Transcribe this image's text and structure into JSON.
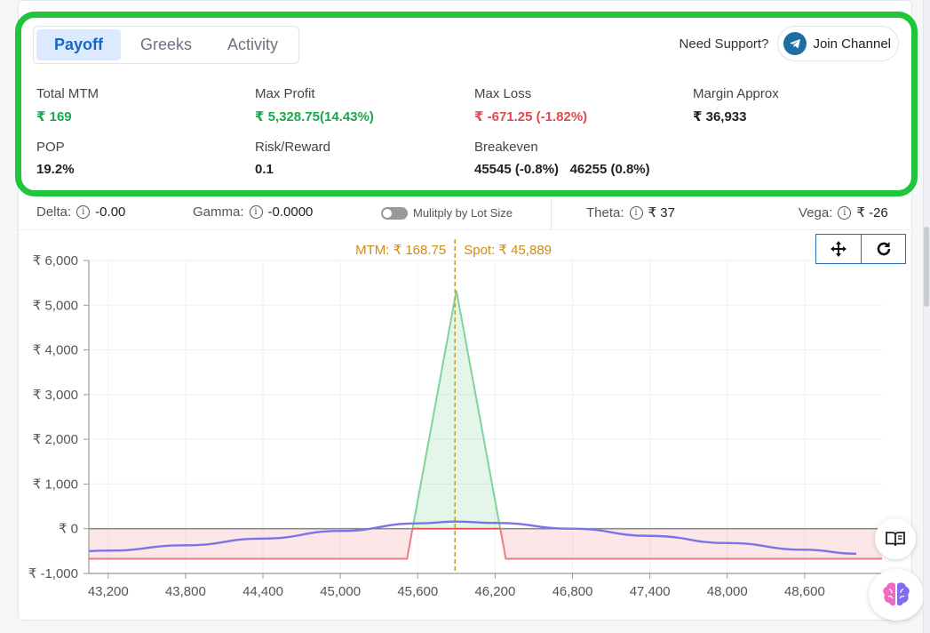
{
  "tabs": [
    {
      "label": "Payoff",
      "active": true
    },
    {
      "label": "Greeks",
      "active": false
    },
    {
      "label": "Activity",
      "active": false
    }
  ],
  "support": {
    "text": "Need Support?",
    "button_label": "Join Channel",
    "icon": "telegram-icon"
  },
  "stats": {
    "total_mtm": {
      "label": "Total MTM",
      "value": "₹ 169"
    },
    "max_profit": {
      "label": "Max Profit",
      "value": "₹ 5,328.75(14.43%)"
    },
    "max_loss": {
      "label": "Max Loss",
      "value": "₹ -671.25 (-1.82%)"
    },
    "margin": {
      "label": "Margin Approx",
      "value": "₹ 36,933"
    },
    "pop": {
      "label": "POP",
      "value": "19.2%"
    },
    "risk_reward": {
      "label": "Risk/Reward",
      "value": "0.1"
    },
    "breakeven": {
      "label": "Breakeven",
      "value1": "45545 (-0.8%)",
      "value2": "46255 (0.8%)"
    }
  },
  "greeks": {
    "delta_label": "Delta:",
    "delta_value": "-0.00",
    "gamma_label": "Gamma:",
    "gamma_value": "-0.0000",
    "lot_toggle_label": "Mulitply by Lot Size",
    "theta_label": "Theta:",
    "theta_value": "₹ 37",
    "vega_label": "Vega:",
    "vega_value": "₹ -26"
  },
  "colors": {
    "profit": "#1aa84a",
    "loss": "#e04a4a",
    "accent": "#1a66c6",
    "spot_line": "#d4a017",
    "t0_line": "#7b74e8",
    "highlight": "#1fc63b"
  },
  "chart_data": {
    "type": "area",
    "annotation": {
      "mtm": "MTM: ₹ 168.75",
      "spot": "Spot: ₹ 45,889",
      "spot_x": 45889
    },
    "xticks": [
      "43,200",
      "43,800",
      "44,400",
      "45,000",
      "45,600",
      "46,200",
      "46,800",
      "47,400",
      "48,000",
      "48,600"
    ],
    "xtick_values": [
      43200,
      43800,
      44400,
      45000,
      45600,
      46200,
      46800,
      47400,
      48000,
      48600
    ],
    "yticks": [
      "₹ 6,000",
      "₹ 5,000",
      "₹ 4,000",
      "₹ 3,000",
      "₹ 2,000",
      "₹ 1,000",
      "₹ 0",
      "₹ -1,000"
    ],
    "ytick_values": [
      6000,
      5000,
      4000,
      3000,
      2000,
      1000,
      0,
      -1000
    ],
    "xlim": [
      43050,
      49200
    ],
    "ylim": [
      -1000,
      6000
    ],
    "series": [
      {
        "values": [
          [
            42600,
            -671.25
          ],
          [
            45517,
            -671.25
          ],
          [
            45900,
            5328.75
          ],
          [
            46283,
            -671.25
          ],
          [
            49200,
            -671.25
          ]
        ]
      },
      {
        "values": [
          [
            42600,
            -580
          ],
          [
            43200,
            -490
          ],
          [
            43800,
            -370
          ],
          [
            44400,
            -220
          ],
          [
            45000,
            -50
          ],
          [
            45600,
            120
          ],
          [
            45900,
            160
          ],
          [
            46200,
            130
          ],
          [
            46800,
            0
          ],
          [
            47400,
            -160
          ],
          [
            48000,
            -320
          ],
          [
            48600,
            -470
          ],
          [
            49000,
            -560
          ]
        ]
      }
    ],
    "grid": true
  },
  "fabs": [
    {
      "icon": "book-icon"
    },
    {
      "icon": "brain-icon"
    }
  ]
}
